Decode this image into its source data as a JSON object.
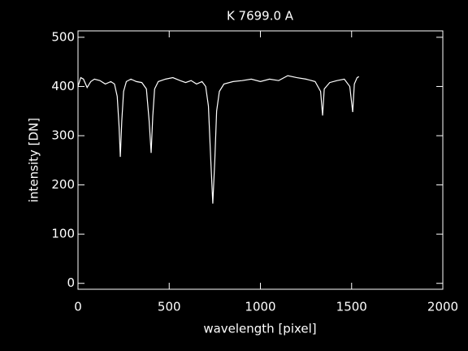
{
  "chart_data": {
    "type": "line",
    "title": "K 7699.0 A",
    "xlabel": "wavelength [pixel]",
    "ylabel": "intensity [DN]",
    "x": [
      0,
      15,
      30,
      50,
      70,
      90,
      120,
      150,
      180,
      200,
      215,
      225,
      232,
      240,
      250,
      265,
      290,
      320,
      350,
      375,
      390,
      401,
      410,
      420,
      440,
      480,
      520,
      560,
      590,
      620,
      650,
      680,
      700,
      715,
      728,
      739,
      750,
      760,
      775,
      800,
      850,
      900,
      950,
      1000,
      1050,
      1100,
      1150,
      1200,
      1250,
      1300,
      1330,
      1341,
      1350,
      1380,
      1420,
      1460,
      1490,
      1506,
      1515,
      1530,
      1540
    ],
    "series": [
      {
        "name": "intensity",
        "color": "#ffffff",
        "values": [
          400,
          418,
          415,
          398,
          410,
          415,
          412,
          405,
          410,
          405,
          380,
          320,
          257,
          330,
          390,
          410,
          415,
          410,
          408,
          395,
          330,
          265,
          340,
          395,
          410,
          415,
          418,
          412,
          408,
          412,
          405,
          410,
          400,
          360,
          250,
          162,
          250,
          350,
          390,
          405,
          410,
          412,
          415,
          410,
          415,
          412,
          422,
          418,
          415,
          410,
          390,
          341,
          395,
          408,
          412,
          415,
          400,
          348,
          405,
          418,
          420
        ]
      }
    ],
    "xlim": [
      0,
      2000
    ],
    "xticks": [
      0,
      500,
      1000,
      1500,
      2000
    ],
    "ylim": [
      -12,
      513
    ],
    "yticks": [
      0,
      100,
      200,
      300,
      400,
      500
    ]
  }
}
